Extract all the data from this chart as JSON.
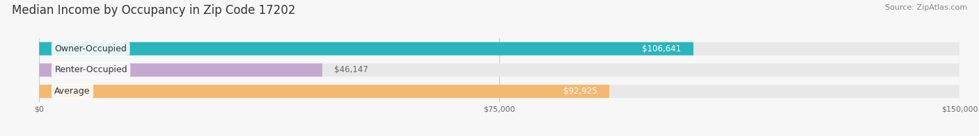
{
  "title": "Median Income by Occupancy in Zip Code 17202",
  "source": "Source: ZipAtlas.com",
  "categories": [
    "Owner-Occupied",
    "Renter-Occupied",
    "Average"
  ],
  "values": [
    106641,
    46147,
    92925
  ],
  "bar_colors": [
    "#2bb5bc",
    "#c4a8d0",
    "#f5b870"
  ],
  "bar_bg_color": "#e8e8e8",
  "labels": [
    "$106,641",
    "$46,147",
    "$92,925"
  ],
  "xlim": [
    0,
    150000
  ],
  "xticks": [
    0,
    75000,
    150000
  ],
  "xtick_labels": [
    "$0",
    "$75,000",
    "$150,000"
  ],
  "title_fontsize": 12,
  "source_fontsize": 8,
  "label_fontsize": 8.5,
  "category_fontsize": 9,
  "bar_height": 0.62,
  "bg_color": "#f7f7f7",
  "bar_label_color_inside": "#ffffff",
  "bar_label_color_outside": "#666666",
  "label_inside_threshold": 0.45
}
